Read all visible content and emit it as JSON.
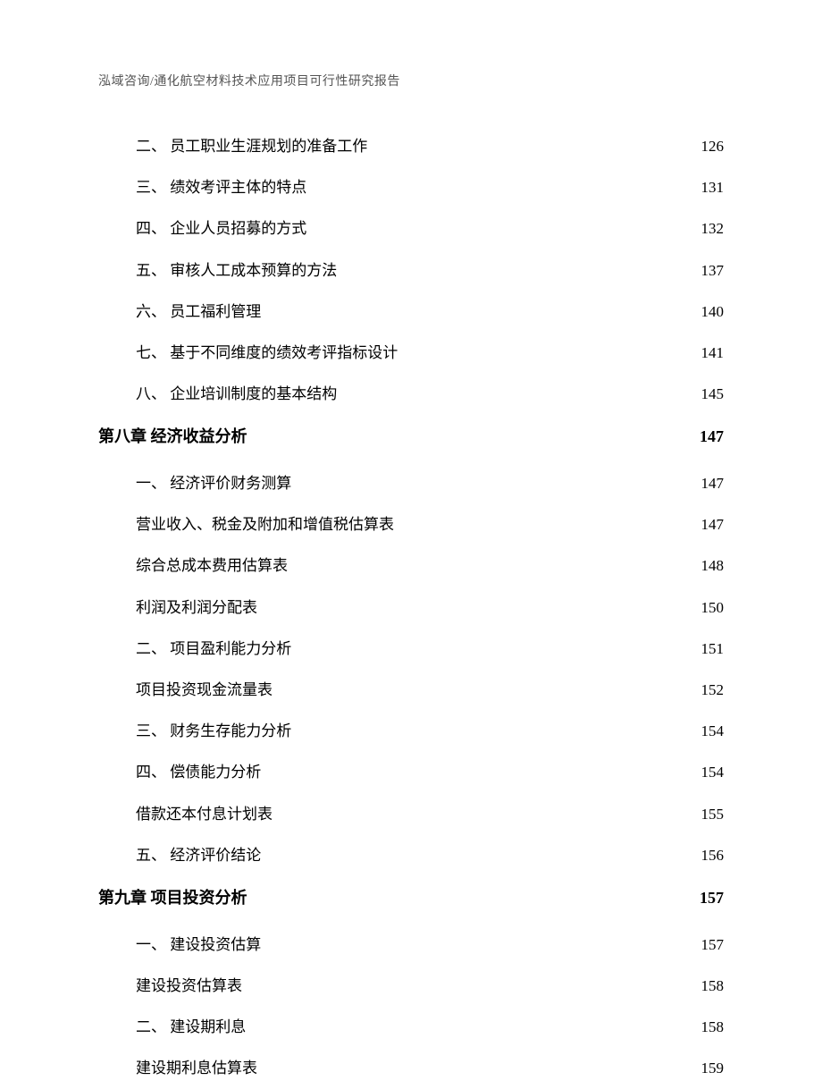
{
  "header_text": "泓域咨询/通化航空材料技术应用项目可行性研究报告",
  "toc": [
    {
      "level": 2,
      "label": "二、 员工职业生涯规划的准备工作",
      "page": "126"
    },
    {
      "level": 2,
      "label": "三、 绩效考评主体的特点",
      "page": "131"
    },
    {
      "level": 2,
      "label": "四、 企业人员招募的方式",
      "page": "132"
    },
    {
      "level": 2,
      "label": "五、 审核人工成本预算的方法",
      "page": "137"
    },
    {
      "level": 2,
      "label": "六、 员工福利管理",
      "page": "140"
    },
    {
      "level": 2,
      "label": "七、 基于不同维度的绩效考评指标设计",
      "page": "141"
    },
    {
      "level": 2,
      "label": "八、 企业培训制度的基本结构",
      "page": "145"
    },
    {
      "level": 1,
      "label": "第八章 经济收益分析",
      "page": "147"
    },
    {
      "level": 2,
      "label": "一、 经济评价财务测算",
      "page": "147"
    },
    {
      "level": 2,
      "label": "营业收入、税金及附加和增值税估算表",
      "page": "147"
    },
    {
      "level": 2,
      "label": "综合总成本费用估算表",
      "page": "148"
    },
    {
      "level": 2,
      "label": "利润及利润分配表",
      "page": "150"
    },
    {
      "level": 2,
      "label": "二、 项目盈利能力分析",
      "page": "151"
    },
    {
      "level": 2,
      "label": "项目投资现金流量表",
      "page": "152"
    },
    {
      "level": 2,
      "label": "三、 财务生存能力分析",
      "page": "154"
    },
    {
      "level": 2,
      "label": "四、 偿债能力分析",
      "page": "154"
    },
    {
      "level": 2,
      "label": "借款还本付息计划表",
      "page": "155"
    },
    {
      "level": 2,
      "label": "五、 经济评价结论",
      "page": "156"
    },
    {
      "level": 1,
      "label": "第九章 项目投资分析",
      "page": "157"
    },
    {
      "level": 2,
      "label": "一、 建设投资估算",
      "page": "157"
    },
    {
      "level": 2,
      "label": "建设投资估算表",
      "page": "158"
    },
    {
      "level": 2,
      "label": "二、 建设期利息",
      "page": "158"
    },
    {
      "level": 2,
      "label": "建设期利息估算表",
      "page": "159"
    }
  ]
}
